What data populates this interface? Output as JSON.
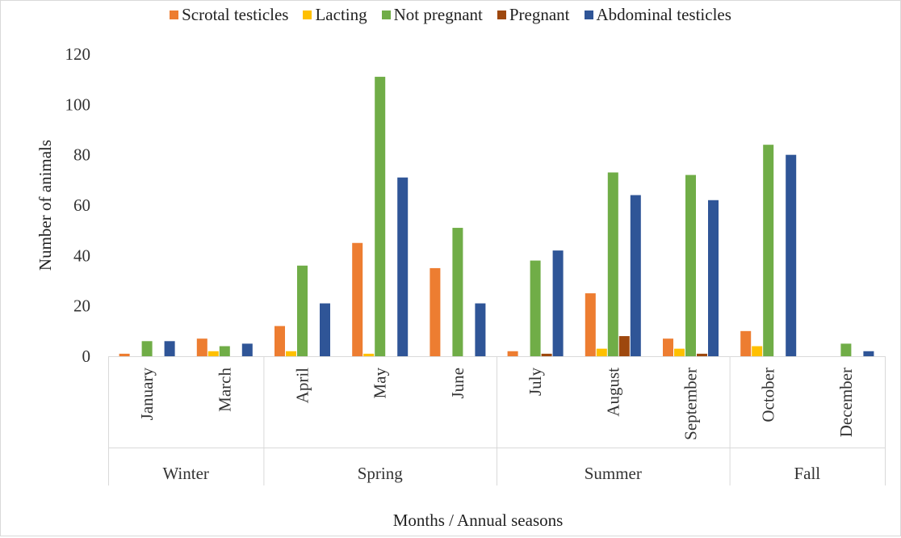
{
  "chart_data": {
    "type": "bar",
    "title": "",
    "xlabel": "Months / Annual seasons",
    "ylabel": "Number of animals",
    "ylim": [
      0,
      120
    ],
    "yticks": [
      0,
      20,
      40,
      60,
      80,
      100,
      120
    ],
    "grid": false,
    "legend_position": "top",
    "categories": [
      "January",
      "March",
      "April",
      "May",
      "June",
      "July",
      "August",
      "September",
      "October",
      "December"
    ],
    "groups": [
      {
        "label": "Winter",
        "categories": [
          "January",
          "March"
        ]
      },
      {
        "label": "Spring",
        "categories": [
          "April",
          "May",
          "June"
        ]
      },
      {
        "label": "Summer",
        "categories": [
          "July",
          "August",
          "September"
        ]
      },
      {
        "label": "Fall",
        "categories": [
          "October",
          "December"
        ]
      }
    ],
    "series": [
      {
        "name": "Scrotal testicles",
        "color": "#ED7D31",
        "values": [
          1,
          7,
          12,
          45,
          35,
          2,
          25,
          7,
          10,
          0
        ]
      },
      {
        "name": "Lacting",
        "color": "#FFC000",
        "values": [
          0,
          2,
          2,
          1,
          0,
          0,
          3,
          3,
          4,
          0
        ]
      },
      {
        "name": "Not pregnant",
        "color": "#70AD47",
        "values": [
          6,
          4,
          36,
          111,
          51,
          38,
          73,
          72,
          84,
          5
        ]
      },
      {
        "name": "Pregnant",
        "color": "#9E480E",
        "values": [
          0,
          0,
          0,
          0,
          0,
          1,
          8,
          1,
          0,
          0
        ]
      },
      {
        "name": "Abdominal testicles",
        "color": "#2F5597",
        "values": [
          6,
          5,
          21,
          71,
          21,
          42,
          64,
          62,
          80,
          2
        ]
      }
    ]
  }
}
